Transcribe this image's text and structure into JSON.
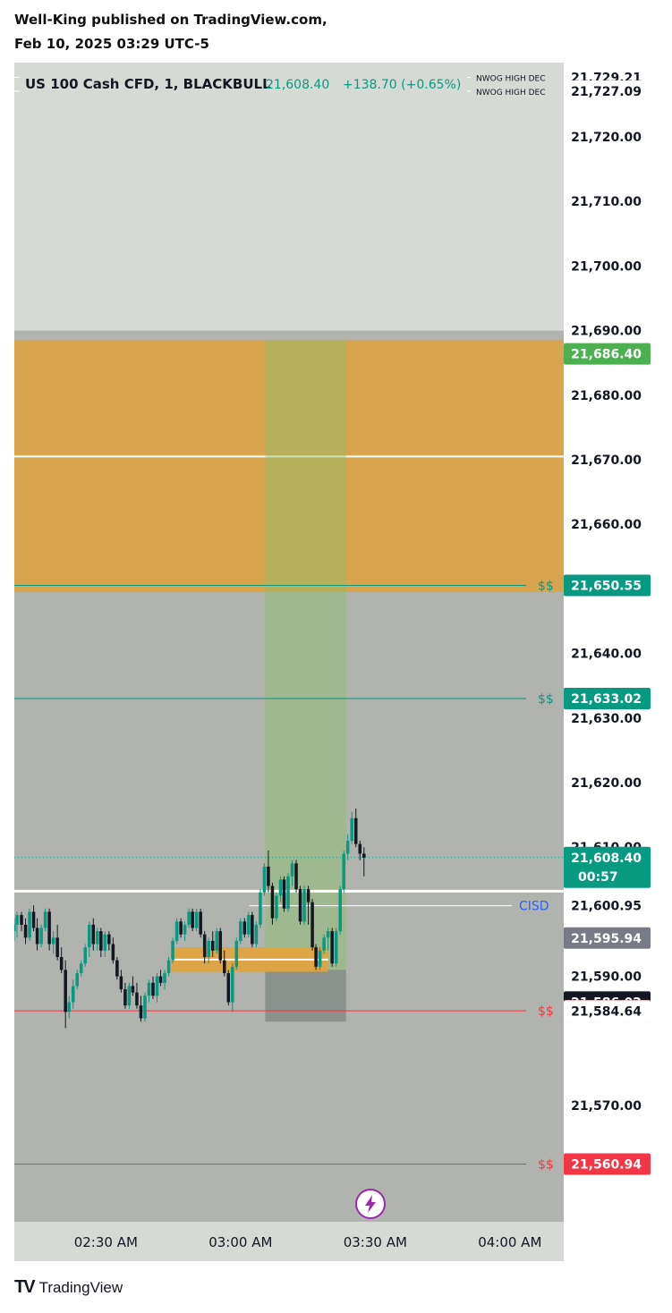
{
  "header": {
    "published": "Well-King published on TradingView.com,",
    "date": "Feb 10, 2025 03:29 UTC-5"
  },
  "legend": {
    "symbol": "US 100 Cash CFD, 1, BLACKBULL",
    "price": "21,608.40",
    "change": "+138.70 (+0.65%)"
  },
  "footer": {
    "logo_icon": "tradingview-logo-icon",
    "brand": "TradingView"
  },
  "chart_data": {
    "type": "candlestick",
    "ylim": [
      21552.0,
      21731.5
    ],
    "y_ticks": [
      {
        "value": 21720,
        "label": "21,720.00"
      },
      {
        "value": 21710,
        "label": "21,710.00"
      },
      {
        "value": 21700,
        "label": "21,700.00"
      },
      {
        "value": 21690,
        "label": "21,690.00"
      },
      {
        "value": 21680,
        "label": "21,680.00"
      },
      {
        "value": 21670,
        "label": "21,670.00"
      },
      {
        "value": 21660,
        "label": "21,660.00"
      },
      {
        "value": 21640,
        "label": "21,640.00"
      },
      {
        "value": 21630,
        "label": "21,630.00"
      },
      {
        "value": 21620,
        "label": "21,620.00"
      },
      {
        "value": 21610,
        "label": "21,610.00"
      },
      {
        "value": 21590,
        "label": "21,590.00"
      },
      {
        "value": 21570,
        "label": "21,570.00"
      }
    ],
    "x_ticks": [
      {
        "minute": 30,
        "label": "02:30 AM"
      },
      {
        "minute": 60,
        "label": "03:00 AM"
      },
      {
        "minute": 90,
        "label": "03:30 AM"
      },
      {
        "minute": 120,
        "label": "04:00 AM"
      }
    ],
    "x_range_minutes": [
      9.6,
      132
    ],
    "price_labels": [
      {
        "value": 21729.21,
        "label": "21,729.21",
        "bg": "#ffffff",
        "fg": "#131722"
      },
      {
        "value": 21727.09,
        "label": "21,727.09",
        "bg": "#ffffff",
        "fg": "#131722"
      },
      {
        "value": 21686.4,
        "label": "21,686.40",
        "bg": "#4caf50",
        "fg": "#ffffff"
      },
      {
        "value": 21650.55,
        "label": "21,650.55",
        "bg": "#089981",
        "fg": "#ffffff"
      },
      {
        "value": 21633.02,
        "label": "21,633.02",
        "bg": "#089981",
        "fg": "#ffffff"
      },
      {
        "value": 21608.4,
        "label": "21,608.40",
        "sublabel": "00:57",
        "bg": "#089981",
        "fg": "#ffffff"
      },
      {
        "value": 21600.95,
        "label": "21,600.95",
        "bg": "#ffffff",
        "fg": "#131722"
      },
      {
        "value": 21595.94,
        "label": "21,595.94",
        "bg": "#787b86",
        "fg": "#ffffff"
      },
      {
        "value": 21586.02,
        "label": "21,586.02",
        "bg": "#131722",
        "fg": "#ffffff"
      },
      {
        "value": 21584.67,
        "label": "21,584.67",
        "bg": "#f23645",
        "fg": "#ffffff"
      },
      {
        "value": 21584.64,
        "label": "21,584.64",
        "bg": "#ffffff",
        "fg": "#131722"
      },
      {
        "value": 21560.94,
        "label": "21,560.94",
        "bg": "#f23645",
        "fg": "#ffffff"
      }
    ],
    "lines": [
      {
        "value": 21729.21,
        "color": "#ffffff",
        "text": "NWOG HIGH DEC",
        "text_color": "#131722"
      },
      {
        "value": 21727.09,
        "color": "#ffffff",
        "text": "NWOG HIGH DEC",
        "text_color": "#131722"
      },
      {
        "value": 21650.55,
        "color": "#089981",
        "text": "$$",
        "text_color": "#089981"
      },
      {
        "value": 21633.02,
        "color": "#089981",
        "text": "$$",
        "text_color": "#089981"
      },
      {
        "value": 21584.67,
        "color": "#f23645",
        "text": "$$",
        "text_color": "#f23645"
      },
      {
        "value": 21560.94,
        "color": "#f23645",
        "text": "$$",
        "text_color": "#f23645"
      },
      {
        "value": 21600.95,
        "color": "#ffffff",
        "text": "CISD",
        "text_color": "#2962ff"
      }
    ],
    "zones": {
      "grey_top": 21690.0,
      "orange_top": 21688.5,
      "orange_bottom": 21649.5,
      "orange_mid": 21670.5,
      "white_line": 21603.2,
      "green_col_min": [
        65.5,
        83.5
      ],
      "green_col_top": 21688.5,
      "green_col_bottom": 21591.0,
      "dark_box_bottom": 21583.0,
      "fvg_min": [
        44.5,
        79.5
      ],
      "fvg_top": 21594.5,
      "fvg_bottom": 21590.7
    },
    "candles": [
      {
        "t": 9.6,
        "o": 21597,
        "h": 21599,
        "l": 21595.5,
        "c": 21598
      },
      {
        "t": 10.2,
        "o": 21598,
        "h": 21600,
        "l": 21596,
        "c": 21599.5
      },
      {
        "t": 11.2,
        "o": 21599.5,
        "h": 21600,
        "l": 21597,
        "c": 21598
      },
      {
        "t": 12.1,
        "o": 21598,
        "h": 21599,
        "l": 21595,
        "c": 21596
      },
      {
        "t": 13.0,
        "o": 21596,
        "h": 21600.5,
        "l": 21595.5,
        "c": 21600
      },
      {
        "t": 13.9,
        "o": 21600,
        "h": 21601,
        "l": 21597,
        "c": 21597.5
      },
      {
        "t": 14.7,
        "o": 21597.5,
        "h": 21599,
        "l": 21594,
        "c": 21595
      },
      {
        "t": 15.6,
        "o": 21595,
        "h": 21598,
        "l": 21594.5,
        "c": 21597.5
      },
      {
        "t": 16.5,
        "o": 21597.5,
        "h": 21600.5,
        "l": 21597,
        "c": 21600
      },
      {
        "t": 17.4,
        "o": 21600,
        "h": 21600.5,
        "l": 21594,
        "c": 21595
      },
      {
        "t": 18.3,
        "o": 21595,
        "h": 21597,
        "l": 21593.5,
        "c": 21596
      },
      {
        "t": 19.2,
        "o": 21596,
        "h": 21598,
        "l": 21592.5,
        "c": 21593
      },
      {
        "t": 20.1,
        "o": 21593,
        "h": 21594.5,
        "l": 21590.5,
        "c": 21591
      },
      {
        "t": 21.0,
        "o": 21591,
        "h": 21592.5,
        "l": 21582,
        "c": 21584.5
      },
      {
        "t": 21.8,
        "o": 21584.5,
        "h": 21587,
        "l": 21583.5,
        "c": 21586
      },
      {
        "t": 22.7,
        "o": 21586,
        "h": 21589.5,
        "l": 21585,
        "c": 21588.5
      },
      {
        "t": 23.6,
        "o": 21588.5,
        "h": 21591,
        "l": 21588,
        "c": 21590.5
      },
      {
        "t": 24.5,
        "o": 21590.5,
        "h": 21592.5,
        "l": 21590,
        "c": 21592
      },
      {
        "t": 25.4,
        "o": 21592,
        "h": 21595,
        "l": 21591.5,
        "c": 21594.5
      },
      {
        "t": 26.3,
        "o": 21594.5,
        "h": 21598.5,
        "l": 21593,
        "c": 21598
      },
      {
        "t": 27.2,
        "o": 21598,
        "h": 21599,
        "l": 21594,
        "c": 21595
      },
      {
        "t": 28.1,
        "o": 21595,
        "h": 21597.5,
        "l": 21594,
        "c": 21597
      },
      {
        "t": 28.9,
        "o": 21597,
        "h": 21597.5,
        "l": 21593,
        "c": 21594
      },
      {
        "t": 29.8,
        "o": 21594,
        "h": 21597,
        "l": 21593,
        "c": 21596.5
      },
      {
        "t": 30.7,
        "o": 21596.5,
        "h": 21597,
        "l": 21594,
        "c": 21595
      },
      {
        "t": 31.6,
        "o": 21595,
        "h": 21596,
        "l": 21592,
        "c": 21592.5
      },
      {
        "t": 32.5,
        "o": 21592.5,
        "h": 21593,
        "l": 21589.5,
        "c": 21590
      },
      {
        "t": 33.4,
        "o": 21590,
        "h": 21591,
        "l": 21587.5,
        "c": 21588
      },
      {
        "t": 34.3,
        "o": 21588,
        "h": 21589,
        "l": 21585,
        "c": 21585.5
      },
      {
        "t": 35.2,
        "o": 21585.5,
        "h": 21589,
        "l": 21585,
        "c": 21588.5
      },
      {
        "t": 36.0,
        "o": 21588.5,
        "h": 21590,
        "l": 21587,
        "c": 21587.5
      },
      {
        "t": 36.9,
        "o": 21587.5,
        "h": 21589,
        "l": 21585,
        "c": 21585.5
      },
      {
        "t": 37.8,
        "o": 21585.5,
        "h": 21587,
        "l": 21583,
        "c": 21583.5
      },
      {
        "t": 38.7,
        "o": 21583.5,
        "h": 21587.5,
        "l": 21583,
        "c": 21587
      },
      {
        "t": 39.6,
        "o": 21587,
        "h": 21589.5,
        "l": 21586,
        "c": 21589
      },
      {
        "t": 40.5,
        "o": 21589,
        "h": 21590,
        "l": 21586.5,
        "c": 21587
      },
      {
        "t": 41.4,
        "o": 21587,
        "h": 21590.5,
        "l": 21586,
        "c": 21590
      },
      {
        "t": 42.2,
        "o": 21590,
        "h": 21591,
        "l": 21588.5,
        "c": 21589
      },
      {
        "t": 43.1,
        "o": 21589,
        "h": 21591,
        "l": 21588,
        "c": 21590.5
      },
      {
        "t": 44.0,
        "o": 21590.5,
        "h": 21593,
        "l": 21590,
        "c": 21592.5
      },
      {
        "t": 44.9,
        "o": 21592.5,
        "h": 21596,
        "l": 21592,
        "c": 21595.5
      },
      {
        "t": 45.8,
        "o": 21595.5,
        "h": 21599,
        "l": 21595,
        "c": 21598.5
      },
      {
        "t": 46.7,
        "o": 21598.5,
        "h": 21599,
        "l": 21596,
        "c": 21596.5
      },
      {
        "t": 47.6,
        "o": 21596.5,
        "h": 21598.5,
        "l": 21595.5,
        "c": 21598
      },
      {
        "t": 48.5,
        "o": 21598,
        "h": 21600.5,
        "l": 21597.5,
        "c": 21600
      },
      {
        "t": 49.3,
        "o": 21600,
        "h": 21600.5,
        "l": 21597,
        "c": 21597.5
      },
      {
        "t": 50.2,
        "o": 21597.5,
        "h": 21600.5,
        "l": 21597,
        "c": 21600
      },
      {
        "t": 51.1,
        "o": 21600,
        "h": 21600.5,
        "l": 21596,
        "c": 21596.5
      },
      {
        "t": 52.0,
        "o": 21596.5,
        "h": 21597,
        "l": 21592,
        "c": 21593
      },
      {
        "t": 52.9,
        "o": 21593,
        "h": 21596,
        "l": 21592,
        "c": 21595.5
      },
      {
        "t": 53.8,
        "o": 21595.5,
        "h": 21597,
        "l": 21593,
        "c": 21594
      },
      {
        "t": 54.7,
        "o": 21594,
        "h": 21597.5,
        "l": 21593.5,
        "c": 21597
      },
      {
        "t": 55.5,
        "o": 21597,
        "h": 21597.5,
        "l": 21592,
        "c": 21592.5
      },
      {
        "t": 56.4,
        "o": 21592.5,
        "h": 21594,
        "l": 21590,
        "c": 21590.5
      },
      {
        "t": 57.3,
        "o": 21590.5,
        "h": 21591,
        "l": 21585.5,
        "c": 21586
      },
      {
        "t": 58.2,
        "o": 21586,
        "h": 21592,
        "l": 21584.5,
        "c": 21591.5
      },
      {
        "t": 59.1,
        "o": 21591.5,
        "h": 21596,
        "l": 21591,
        "c": 21595.5
      },
      {
        "t": 60.0,
        "o": 21595.5,
        "h": 21599,
        "l": 21595,
        "c": 21598.5
      },
      {
        "t": 60.9,
        "o": 21598.5,
        "h": 21599,
        "l": 21596,
        "c": 21596.5
      },
      {
        "t": 61.8,
        "o": 21596.5,
        "h": 21600,
        "l": 21596,
        "c": 21599.5
      },
      {
        "t": 62.6,
        "o": 21599.5,
        "h": 21600,
        "l": 21594.5,
        "c": 21595
      },
      {
        "t": 63.5,
        "o": 21595,
        "h": 21598.5,
        "l": 21594.5,
        "c": 21598
      },
      {
        "t": 64.4,
        "o": 21598,
        "h": 21603.5,
        "l": 21597.5,
        "c": 21603
      },
      {
        "t": 65.3,
        "o": 21603,
        "h": 21607.5,
        "l": 21602.5,
        "c": 21607
      },
      {
        "t": 66.2,
        "o": 21607,
        "h": 21609.5,
        "l": 21603,
        "c": 21604
      },
      {
        "t": 67.1,
        "o": 21604,
        "h": 21604.5,
        "l": 21598,
        "c": 21599
      },
      {
        "t": 68.0,
        "o": 21599,
        "h": 21603,
        "l": 21598.5,
        "c": 21602.5
      },
      {
        "t": 68.9,
        "o": 21602.5,
        "h": 21605.5,
        "l": 21601.5,
        "c": 21605
      },
      {
        "t": 69.7,
        "o": 21605,
        "h": 21605.5,
        "l": 21600,
        "c": 21600.5
      },
      {
        "t": 70.6,
        "o": 21600.5,
        "h": 21606,
        "l": 21600,
        "c": 21605.5
      },
      {
        "t": 71.5,
        "o": 21605.5,
        "h": 21608,
        "l": 21604,
        "c": 21607.5
      },
      {
        "t": 72.4,
        "o": 21607.5,
        "h": 21608,
        "l": 21603,
        "c": 21603.5
      },
      {
        "t": 73.3,
        "o": 21603.5,
        "h": 21604,
        "l": 21598,
        "c": 21598.5
      },
      {
        "t": 74.2,
        "o": 21598.5,
        "h": 21604,
        "l": 21598,
        "c": 21603.5
      },
      {
        "t": 75.1,
        "o": 21603.5,
        "h": 21604,
        "l": 21598,
        "c": 21601.5
      },
      {
        "t": 76.0,
        "o": 21601.5,
        "h": 21602,
        "l": 21594,
        "c": 21594.5
      },
      {
        "t": 76.8,
        "o": 21594.5,
        "h": 21595,
        "l": 21591,
        "c": 21591.5
      },
      {
        "t": 77.7,
        "o": 21591.5,
        "h": 21594.5,
        "l": 21591,
        "c": 21594
      },
      {
        "t": 78.6,
        "o": 21594,
        "h": 21596.5,
        "l": 21593.5,
        "c": 21596
      },
      {
        "t": 79.5,
        "o": 21596,
        "h": 21597.5,
        "l": 21594,
        "c": 21597
      },
      {
        "t": 80.4,
        "o": 21597,
        "h": 21597.5,
        "l": 21591.5,
        "c": 21592
      },
      {
        "t": 81.3,
        "o": 21592,
        "h": 21597.5,
        "l": 21591.5,
        "c": 21597
      },
      {
        "t": 82.2,
        "o": 21597,
        "h": 21604,
        "l": 21596.5,
        "c": 21603.5
      },
      {
        "t": 83.0,
        "o": 21603.5,
        "h": 21609.5,
        "l": 21603,
        "c": 21609
      },
      {
        "t": 83.9,
        "o": 21609,
        "h": 21612,
        "l": 21608,
        "c": 21611
      },
      {
        "t": 84.8,
        "o": 21611,
        "h": 21615.5,
        "l": 21610.5,
        "c": 21614.5
      },
      {
        "t": 85.7,
        "o": 21614.5,
        "h": 21616,
        "l": 21610,
        "c": 21610.5
      },
      {
        "t": 86.6,
        "o": 21610.5,
        "h": 21611,
        "l": 21608,
        "c": 21609
      },
      {
        "t": 87.5,
        "o": 21609,
        "h": 21610,
        "l": 21605.5,
        "c": 21608.4
      }
    ]
  }
}
